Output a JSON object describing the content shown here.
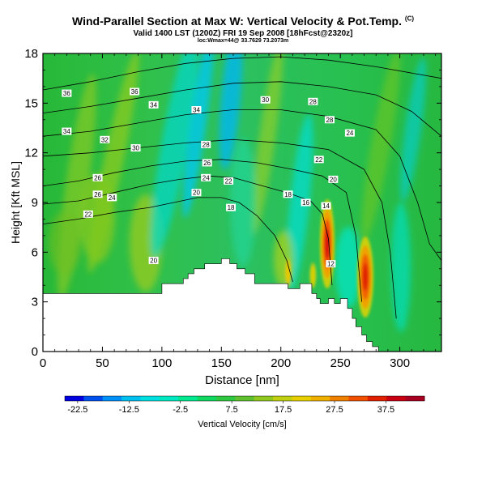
{
  "title": {
    "main": "Wind-Parallel Section at Max W: Vertical Velocity & Pot.Temp.",
    "copyright": "(C)",
    "valid": "Valid 1400 LST (1200Z) FRI 19 Sep 2008 [18hFcst@2320z]",
    "location": "loc:Wmax=44@ 33.7629 73.2073m"
  },
  "chart_data": {
    "type": "heatmap",
    "xlabel": "Distance [nm]",
    "ylabel": "Height [Kft MSL]",
    "xlim": [
      0,
      335
    ],
    "ylim": [
      0,
      18
    ],
    "x_ticks": [
      "0",
      "50",
      "100",
      "150",
      "200",
      "250",
      "300"
    ],
    "y_ticks": [
      "0",
      "3",
      "6",
      "9",
      "12",
      "15",
      "18"
    ],
    "colorbar": {
      "label": "Vertical Velocity [cm/s]",
      "tick_labels": [
        "-22.5",
        "-12.5",
        "-2.5",
        "7.5",
        "17.5",
        "27.5",
        "37.5"
      ],
      "range": [
        -25,
        45
      ],
      "colors": [
        "#0000e0",
        "#0050f0",
        "#0090f8",
        "#00c0f0",
        "#00e0e0",
        "#00e8c0",
        "#00e890",
        "#10d860",
        "#30c840",
        "#60c030",
        "#90c820",
        "#c0d010",
        "#e8d000",
        "#f0b000",
        "#f08000",
        "#f05000",
        "#e02000",
        "#c80010",
        "#a80020"
      ]
    },
    "terrain": [
      [
        0,
        3.5
      ],
      [
        100,
        3.5
      ],
      [
        100,
        4.1
      ],
      [
        118,
        4.1
      ],
      [
        118,
        4.4
      ],
      [
        122,
        4.4
      ],
      [
        122,
        4.7
      ],
      [
        127,
        4.7
      ],
      [
        127,
        5.0
      ],
      [
        136,
        5.0
      ],
      [
        136,
        5.3
      ],
      [
        150,
        5.3
      ],
      [
        150,
        5.6
      ],
      [
        157,
        5.6
      ],
      [
        157,
        5.3
      ],
      [
        163,
        5.3
      ],
      [
        163,
        5.0
      ],
      [
        170,
        5.0
      ],
      [
        170,
        4.7
      ],
      [
        178,
        4.7
      ],
      [
        178,
        4.1
      ],
      [
        206,
        4.1
      ],
      [
        206,
        3.8
      ],
      [
        216,
        3.8
      ],
      [
        216,
        4.1
      ],
      [
        226,
        4.1
      ],
      [
        226,
        3.5
      ],
      [
        230,
        3.5
      ],
      [
        230,
        3.2
      ],
      [
        233,
        3.2
      ],
      [
        233,
        2.9
      ],
      [
        240,
        2.9
      ],
      [
        240,
        3.2
      ],
      [
        245,
        3.2
      ],
      [
        245,
        2.9
      ],
      [
        250,
        2.9
      ],
      [
        250,
        3.2
      ],
      [
        256,
        3.2
      ],
      [
        256,
        2.6
      ],
      [
        260,
        2.6
      ],
      [
        260,
        2.0
      ],
      [
        263,
        2.0
      ],
      [
        263,
        1.5
      ],
      [
        268,
        1.5
      ],
      [
        268,
        1.0
      ],
      [
        272,
        1.0
      ],
      [
        272,
        0.6
      ],
      [
        277,
        0.6
      ],
      [
        277,
        0.3
      ],
      [
        282,
        0.3
      ],
      [
        282,
        0.0
      ]
    ],
    "theta_contours": [
      {
        "level": 22,
        "points": [
          [
            0,
            7.7
          ],
          [
            30,
            8.0
          ],
          [
            60,
            8.4
          ],
          [
            90,
            8.7
          ],
          [
            110,
            9.0
          ],
          [
            130,
            9.3
          ],
          [
            150,
            9.3
          ],
          [
            165,
            9.0
          ],
          [
            180,
            8.2
          ],
          [
            195,
            7.0
          ],
          [
            205,
            5.5
          ],
          [
            210,
            4.2
          ]
        ]
      },
      {
        "level": 24,
        "points": [
          [
            0,
            8.9
          ],
          [
            30,
            9.1
          ],
          [
            60,
            9.6
          ],
          [
            90,
            10.1
          ],
          [
            115,
            10.4
          ],
          [
            140,
            10.6
          ],
          [
            160,
            10.5
          ],
          [
            185,
            10.0
          ],
          [
            205,
            9.6
          ],
          [
            225,
            9.1
          ],
          [
            235,
            8.3
          ],
          [
            240,
            6.8
          ],
          [
            243,
            4.0
          ]
        ]
      },
      {
        "level": 26,
        "points": [
          [
            0,
            10.0
          ],
          [
            30,
            10.3
          ],
          [
            60,
            10.8
          ],
          [
            90,
            11.2
          ],
          [
            120,
            11.5
          ],
          [
            150,
            11.6
          ],
          [
            180,
            11.4
          ],
          [
            210,
            11.0
          ],
          [
            235,
            10.6
          ],
          [
            255,
            9.6
          ],
          [
            263,
            7.0
          ],
          [
            268,
            3.0
          ]
        ]
      },
      {
        "level": 28,
        "points": [
          [
            0,
            11.8
          ],
          [
            40,
            12.0
          ],
          [
            80,
            12.3
          ],
          [
            120,
            12.6
          ],
          [
            160,
            12.8
          ],
          [
            200,
            12.6
          ],
          [
            240,
            12.2
          ],
          [
            270,
            11.0
          ],
          [
            285,
            9.0
          ],
          [
            292,
            6.0
          ],
          [
            297,
            2.0
          ]
        ]
      },
      {
        "level": 30,
        "points": [
          [
            0,
            13.0
          ],
          [
            40,
            13.3
          ],
          [
            80,
            13.8
          ],
          [
            120,
            14.3
          ],
          [
            160,
            14.6
          ],
          [
            200,
            14.6
          ],
          [
            240,
            14.2
          ],
          [
            280,
            13.4
          ],
          [
            300,
            11.8
          ],
          [
            315,
            9.0
          ],
          [
            325,
            6.5
          ],
          [
            335,
            5.5
          ]
        ]
      },
      {
        "level": 32,
        "points": [
          [
            0,
            14.4
          ],
          [
            40,
            14.8
          ],
          [
            80,
            15.3
          ],
          [
            120,
            15.8
          ],
          [
            160,
            16.2
          ],
          [
            200,
            16.3
          ],
          [
            240,
            16.0
          ],
          [
            280,
            15.5
          ],
          [
            310,
            14.5
          ],
          [
            335,
            13.0
          ]
        ]
      },
      {
        "level": 34,
        "points": [
          [
            0,
            15.8
          ],
          [
            40,
            16.3
          ],
          [
            80,
            16.9
          ],
          [
            120,
            17.4
          ],
          [
            160,
            17.7
          ],
          [
            200,
            17.8
          ],
          [
            240,
            17.6
          ],
          [
            280,
            17.2
          ],
          [
            335,
            16.5
          ]
        ]
      }
    ],
    "contour_labels": [
      {
        "text": "36",
        "x": 20,
        "y": 15.6
      },
      {
        "text": "34",
        "x": 20,
        "y": 13.3
      },
      {
        "text": "32",
        "x": 52,
        "y": 12.8
      },
      {
        "text": "30",
        "x": 78,
        "y": 12.3
      },
      {
        "text": "34",
        "x": 93,
        "y": 14.9
      },
      {
        "text": "36",
        "x": 77,
        "y": 15.7
      },
      {
        "text": "26",
        "x": 46,
        "y": 10.5
      },
      {
        "text": "26",
        "x": 46,
        "y": 9.5
      },
      {
        "text": "24",
        "x": 58,
        "y": 9.3
      },
      {
        "text": "22",
        "x": 38,
        "y": 8.3
      },
      {
        "text": "34",
        "x": 129,
        "y": 14.6
      },
      {
        "text": "28",
        "x": 137,
        "y": 12.5
      },
      {
        "text": "26",
        "x": 138,
        "y": 11.4
      },
      {
        "text": "24",
        "x": 137,
        "y": 10.5
      },
      {
        "text": "22",
        "x": 156,
        "y": 10.3
      },
      {
        "text": "20",
        "x": 129,
        "y": 9.6
      },
      {
        "text": "18",
        "x": 158,
        "y": 8.7
      },
      {
        "text": "20",
        "x": 93,
        "y": 5.5
      },
      {
        "text": "30",
        "x": 187,
        "y": 15.2
      },
      {
        "text": "28",
        "x": 227,
        "y": 15.1
      },
      {
        "text": "28",
        "x": 241,
        "y": 14.0
      },
      {
        "text": "24",
        "x": 258,
        "y": 13.2
      },
      {
        "text": "22",
        "x": 232,
        "y": 11.6
      },
      {
        "text": "20",
        "x": 244,
        "y": 10.4
      },
      {
        "text": "18",
        "x": 206,
        "y": 9.5
      },
      {
        "text": "16",
        "x": 221,
        "y": 9.0
      },
      {
        "text": "14",
        "x": 238,
        "y": 8.8
      },
      {
        "text": "12",
        "x": 242,
        "y": 5.3
      }
    ]
  }
}
